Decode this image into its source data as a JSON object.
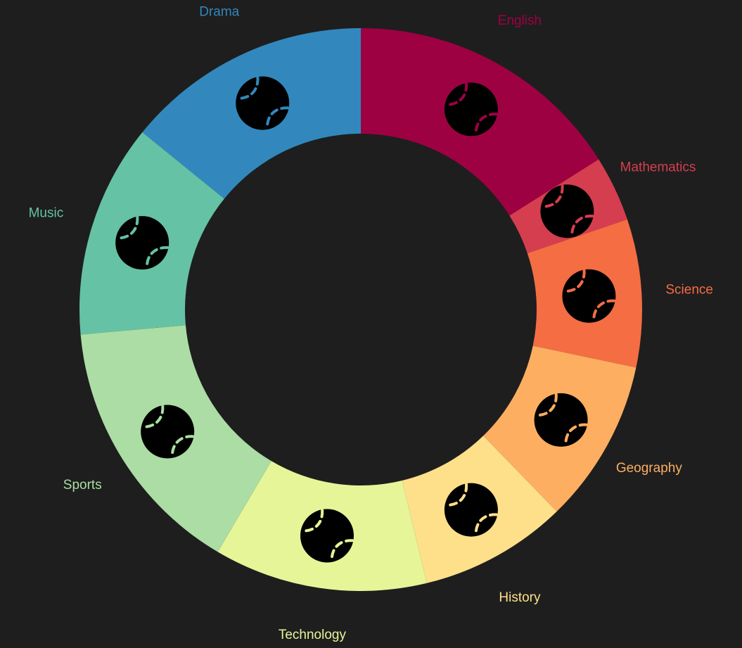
{
  "chart_data": {
    "type": "donut",
    "title": "",
    "categories": [
      "English",
      "Mathematics",
      "Science",
      "Geography",
      "History",
      "Technology",
      "Sports",
      "Music",
      "Drama"
    ],
    "values": [
      17,
      4,
      9,
      10,
      9,
      13,
      16,
      13,
      15
    ],
    "colors": [
      "#9e0142",
      "#d53e4f",
      "#f46d43",
      "#fdae61",
      "#fee08b",
      "#e6f598",
      "#abdda4",
      "#66c2a5",
      "#3288bd"
    ],
    "slice_icon": "baseball-icon",
    "legend": "none"
  },
  "background_color": "#1e1e1e"
}
